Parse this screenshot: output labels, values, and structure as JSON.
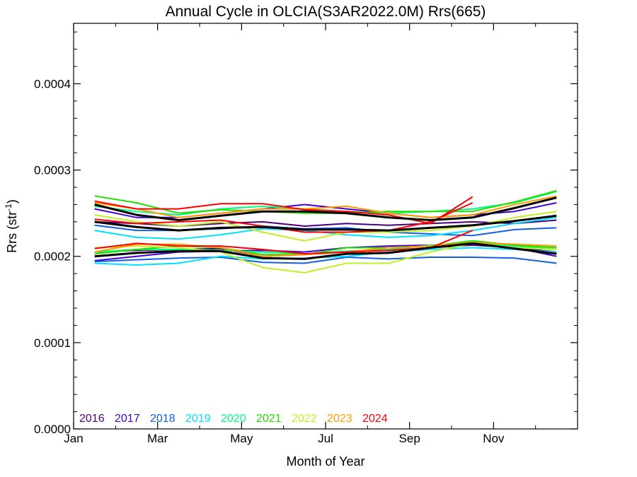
{
  "chart_data": {
    "type": "line",
    "title": "Annual Cycle in OLCIA(S3AR2022.0M) Rrs(665)",
    "xlabel": "Month of Year",
    "ylabel_text": "Rrs (str",
    "ylabel_sup": "-1",
    "ylabel_close": ")",
    "xlim": [
      1,
      13
    ],
    "ylim": [
      0.0,
      0.00047
    ],
    "xticks": [
      {
        "value": 1,
        "label": "Jan"
      },
      {
        "value": 3,
        "label": "Mar"
      },
      {
        "value": 5,
        "label": "May"
      },
      {
        "value": 7,
        "label": "Jul"
      },
      {
        "value": 9,
        "label": "Sep"
      },
      {
        "value": 11,
        "label": "Nov"
      }
    ],
    "yticks": [
      {
        "value": 0.0,
        "label": "0.0000"
      },
      {
        "value": 0.0001,
        "label": "0.0001"
      },
      {
        "value": 0.0002,
        "label": "0.0002"
      },
      {
        "value": 0.0003,
        "label": "0.0003"
      },
      {
        "value": 0.0004,
        "label": "0.0004"
      }
    ],
    "x": [
      1.5,
      2.5,
      3.5,
      4.5,
      5.5,
      6.5,
      7.5,
      8.5,
      9.5,
      10.5,
      11.5,
      12.5
    ],
    "series": [
      {
        "name": "2016",
        "color": "#4b0082",
        "lines": [
          [
            0.00024,
            0.000238,
            0.000235,
            0.000238,
            0.00024,
            0.000235,
            0.000238,
            0.000236,
            0.000238,
            0.00024,
            0.000238,
            0.000242
          ],
          [
            0.000205,
            0.000207,
            0.000208,
            0.000209,
            0.0002,
            0.000202,
            0.000205,
            0.000207,
            0.00021,
            0.000213,
            0.00021,
            0.000205
          ]
        ]
      },
      {
        "name": "2017",
        "color": "#4400d8",
        "lines": [
          [
            0.000255,
            0.000245,
            0.000245,
            0.00025,
            0.000255,
            0.00026,
            0.000255,
            0.00025,
            0.000245,
            0.000248,
            0.000252,
            0.000262
          ],
          [
            0.000195,
            0.0002,
            0.000205,
            0.000206,
            0.000207,
            0.000205,
            0.00021,
            0.000212,
            0.000213,
            0.000215,
            0.00021,
            0.0002
          ]
        ]
      },
      {
        "name": "2018",
        "color": "#1060e8",
        "lines": [
          [
            0.000236,
            0.00023,
            0.00023,
            0.000232,
            0.000235,
            0.000232,
            0.000233,
            0.000228,
            0.000226,
            0.000224,
            0.000231,
            0.000233
          ],
          [
            0.000194,
            0.000196,
            0.000198,
            0.000199,
            0.000193,
            0.000192,
            0.000199,
            0.000197,
            0.000199,
            0.000199,
            0.000198,
            0.000192
          ]
        ]
      },
      {
        "name": "2019",
        "color": "#00e0ff",
        "lines": [
          [
            0.00023,
            0.000222,
            0.00022,
            0.000225,
            0.000232,
            0.00023,
            0.000225,
            0.000222,
            0.000224,
            0.00023,
            0.000238,
            0.000245
          ],
          [
            0.000192,
            0.00019,
            0.000192,
            0.0002,
            0.000197,
            0.000198,
            0.0002,
            0.000205,
            0.000208,
            0.00021,
            0.000208,
            0.000205
          ]
        ]
      },
      {
        "name": "2020",
        "color": "#00ff80",
        "lines": [
          [
            0.000258,
            0.000252,
            0.000248,
            0.000255,
            0.000258,
            0.000255,
            0.000252,
            0.00025,
            0.000252,
            0.000255,
            0.000262,
            0.000275
          ],
          [
            0.000205,
            0.000208,
            0.000208,
            0.000207,
            0.000205,
            0.000203,
            0.000206,
            0.000208,
            0.000213,
            0.000215,
            0.000212,
            0.000208
          ]
        ]
      },
      {
        "name": "2021",
        "color": "#22dd00",
        "lines": [
          [
            0.00027,
            0.000262,
            0.00025,
            0.000254,
            0.000252,
            0.00025,
            0.00025,
            0.000252,
            0.000252,
            0.000252,
            0.000263,
            0.000276
          ],
          [
            0.000203,
            0.000208,
            0.000212,
            0.00021,
            0.000202,
            0.000202,
            0.00021,
            0.00021,
            0.000212,
            0.000218,
            0.000213,
            0.00021
          ]
        ]
      },
      {
        "name": "2022",
        "color": "#c0f020",
        "lines": [
          [
            0.000248,
            0.00024,
            0.000235,
            0.00024,
            0.000228,
            0.000218,
            0.000228,
            0.000228,
            0.00023,
            0.000235,
            0.000245,
            0.000252
          ],
          [
            0.00021,
            0.000212,
            0.00021,
            0.000205,
            0.000187,
            0.000181,
            0.000192,
            0.000192,
            0.000205,
            0.000215,
            0.00021,
            0.000208
          ]
        ]
      },
      {
        "name": "2023",
        "color": "#ff9900",
        "lines": [
          [
            0.000262,
            0.000255,
            0.000245,
            0.00025,
            0.000255,
            0.000255,
            0.000258,
            0.00025,
            0.000245,
            0.000248,
            0.00026,
            0.00027
          ],
          [
            0.000205,
            0.000214,
            0.000214,
            0.00021,
            0.0002,
            0.000202,
            0.000205,
            0.00021,
            0.000212,
            0.000216,
            0.000214,
            0.000212
          ]
        ]
      },
      {
        "name": "2024",
        "color": "#ff0000",
        "lines": [
          [
            0.000264,
            0.000255,
            0.000255,
            0.000261,
            0.000261,
            0.000254,
            0.000252,
            0.000248,
            0.000238,
            0.000269
          ],
          [
            0.000243,
            0.000238,
            0.00024,
            0.000242,
            0.000235,
            0.000228,
            0.000228,
            0.00023,
            0.00024,
            0.000262
          ],
          [
            0.000209,
            0.000215,
            0.000212,
            0.000212,
            0.000208,
            0.000203,
            0.000205,
            0.000207,
            0.00021,
            0.00023
          ]
        ]
      }
    ],
    "climatology": {
      "color": "#000000",
      "lines": [
        [
          0.00026,
          0.000248,
          0.000242,
          0.000247,
          0.000252,
          0.000252,
          0.00025,
          0.000245,
          0.000242,
          0.000245,
          0.000256,
          0.000268
        ],
        [
          0.00024,
          0.000234,
          0.00023,
          0.000233,
          0.000234,
          0.000231,
          0.000231,
          0.00023,
          0.000233,
          0.000236,
          0.000241,
          0.000247
        ],
        [
          0.0002,
          0.000204,
          0.000206,
          0.000206,
          0.000198,
          0.000197,
          0.000203,
          0.000204,
          0.00021,
          0.000215,
          0.000209,
          0.000203
        ]
      ]
    },
    "legend_position": "bottom-left"
  }
}
